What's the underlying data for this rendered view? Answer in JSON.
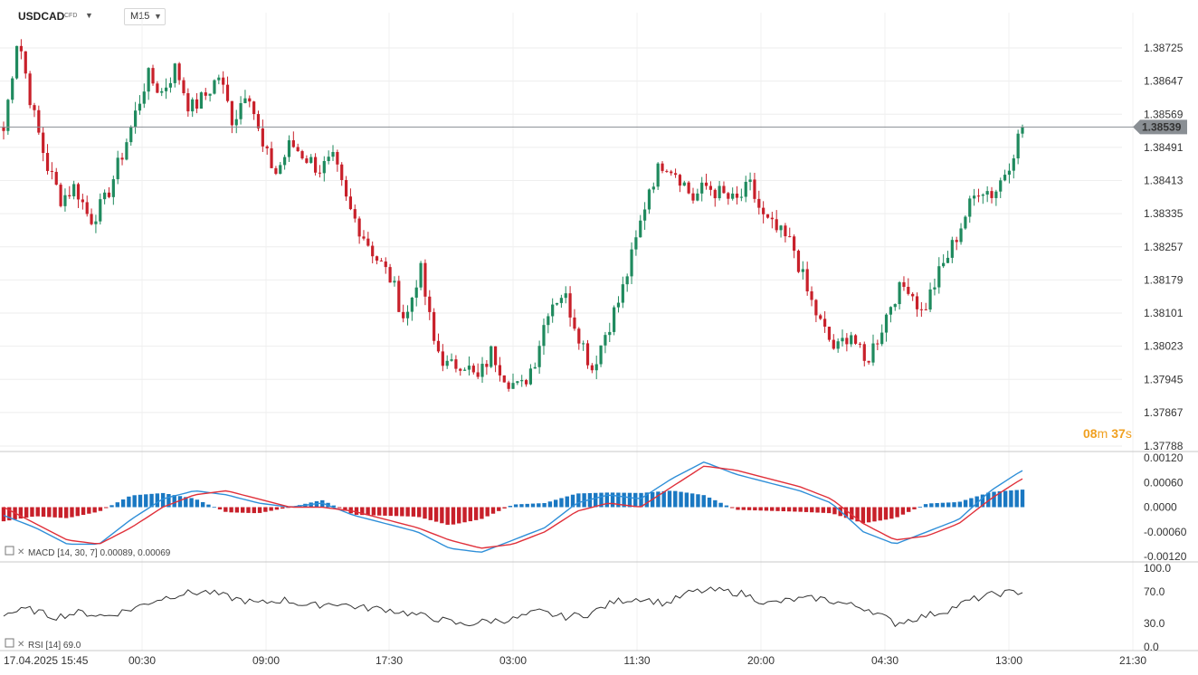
{
  "toolbar": {
    "symbol": "USDCAD",
    "symbol_type": "CFD",
    "timeframe": "M15"
  },
  "countdown": {
    "minutes": "08",
    "m_unit": "m",
    "seconds": "37",
    "s_unit": "s"
  },
  "colors": {
    "bull": "#1f8a5e",
    "bear": "#c8202a",
    "macd_line": "#2f8fd8",
    "signal_line": "#e0303a",
    "hist_pos": "#1a78c2",
    "hist_neg": "#c8202a",
    "rsi_line": "#333333",
    "countdown_min": "#f0a020",
    "countdown_sec": "#f0a020",
    "price_tag": "#8a8f94"
  },
  "indicators": {
    "macd_label": "MACD [14, 30, 7] 0.00089, 0.00069",
    "rsi_label": "RSI [14] 69.0"
  },
  "chart_data": [
    {
      "type": "candlestick",
      "symbol": "USDCAD",
      "timeframe": "M15",
      "y_ticks": [
        "1.38725",
        "1.38647",
        "1.38569",
        "1.38491",
        "1.38413",
        "1.38335",
        "1.38257",
        "1.38179",
        "1.38101",
        "1.38023",
        "1.37945",
        "1.37867",
        "1.37788"
      ],
      "ylim": [
        1.37788,
        1.38803
      ],
      "current_price": "1.38539",
      "x_ticks": [
        "17.04.2025 15:45",
        "00:30",
        "09:00",
        "17:30",
        "03:00",
        "11:30",
        "20:00",
        "04:30",
        "13:00",
        "21:30"
      ],
      "close_path": [
        1.3853,
        1.3876,
        1.3858,
        1.3845,
        1.3837,
        1.384,
        1.3832,
        1.3836,
        1.3845,
        1.3855,
        1.3866,
        1.3862,
        1.3868,
        1.3858,
        1.3861,
        1.3866,
        1.3855,
        1.3864,
        1.3849,
        1.3843,
        1.385,
        1.3847,
        1.3844,
        1.3846,
        1.3835,
        1.3829,
        1.3823,
        1.3818,
        1.3808,
        1.3821,
        1.3803,
        1.3797,
        1.3799,
        1.3794,
        1.3801,
        1.3795,
        1.3792,
        1.3799,
        1.3812,
        1.3815,
        1.3806,
        1.3797,
        1.3806,
        1.3814,
        1.3826,
        1.384,
        1.3846,
        1.3843,
        1.3837,
        1.384,
        1.3838,
        1.3836,
        1.384,
        1.3832,
        1.3829,
        1.3826,
        1.3815,
        1.3807,
        1.3801,
        1.3806,
        1.3798,
        1.3805,
        1.3814,
        1.3817,
        1.381,
        1.3818,
        1.3825,
        1.3833,
        1.384,
        1.3838,
        1.3845,
        1.3854
      ]
    },
    {
      "type": "line",
      "name": "MACD",
      "y_ticks": [
        "0.00120",
        "0.00060",
        "0.0000",
        "-0.00060",
        "-0.00120"
      ],
      "ylim": [
        -0.00125,
        0.00125
      ],
      "macd_path": [
        -0.0002,
        -0.0005,
        -0.0009,
        -0.0009,
        -0.0003,
        0.0002,
        0.0004,
        0.0003,
        0.0001,
        0.0,
        0.0001,
        -0.0002,
        -0.0004,
        -0.0006,
        -0.001,
        -0.0011,
        -0.0008,
        -0.0005,
        0.0001,
        0.0003,
        0.0002,
        0.0007,
        0.0011,
        0.0008,
        0.0006,
        0.0004,
        0.0001,
        -0.0006,
        -0.0009,
        -0.0006,
        -0.0003,
        0.0004,
        0.0009
      ],
      "signal_path": [
        0.0,
        -0.0004,
        -0.0008,
        -0.0009,
        -0.0005,
        0.0,
        0.0003,
        0.0004,
        0.0002,
        0.0,
        0.0,
        -0.0001,
        -0.0003,
        -0.0005,
        -0.0008,
        -0.001,
        -0.0009,
        -0.0006,
        -0.0001,
        0.0001,
        0.0,
        0.0005,
        0.001,
        0.0009,
        0.0007,
        0.0005,
        0.0002,
        -0.0004,
        -0.0008,
        -0.0007,
        -0.0004,
        0.0002,
        0.0007
      ],
      "current_values": [
        0.00089,
        0.00069
      ]
    },
    {
      "type": "line",
      "name": "RSI",
      "y_ticks": [
        "100.0",
        "70.0",
        "30.0",
        "0.0"
      ],
      "ylim": [
        0,
        100
      ],
      "rsi_path": [
        42,
        48,
        38,
        44,
        39,
        48,
        60,
        68,
        70,
        62,
        55,
        60,
        52,
        56,
        50,
        48,
        42,
        36,
        28,
        33,
        35,
        45,
        38,
        42,
        58,
        62,
        55,
        70,
        72,
        68,
        55,
        60,
        62,
        55,
        48,
        30,
        38,
        46,
        60,
        68,
        70
      ]
    }
  ]
}
